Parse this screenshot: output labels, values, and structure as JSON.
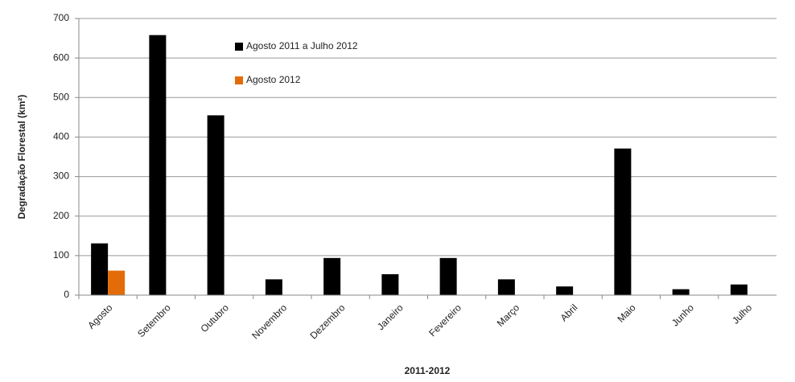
{
  "chart_data": {
    "type": "bar",
    "x_label": "2011-2012",
    "y_label": "Degradação Florestal (km²)",
    "categories": [
      "Agosto",
      "Setembro",
      "Outubro",
      "Novembro",
      "Dezembro",
      "Janeiro",
      "Fevereiro",
      "Março",
      "Abril",
      "Maio",
      "Junho",
      "Julho"
    ],
    "series": [
      {
        "name": "Agosto 2011 a Julho 2012",
        "color": "#000000",
        "values": [
          131,
          658,
          455,
          40,
          94,
          53,
          94,
          40,
          22,
          371,
          15,
          27
        ]
      },
      {
        "name": "Agosto 2012",
        "color": "#e36c09",
        "values": [
          62,
          null,
          null,
          null,
          null,
          null,
          null,
          null,
          null,
          null,
          null,
          null
        ]
      }
    ],
    "ylim": [
      0,
      700
    ],
    "yticks": [
      0,
      100,
      200,
      300,
      400,
      500,
      600,
      700
    ],
    "grid": true
  }
}
